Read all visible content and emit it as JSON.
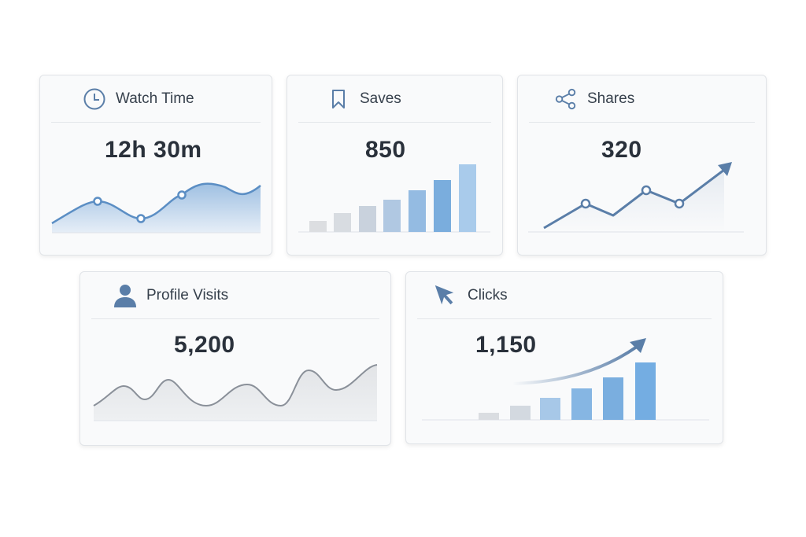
{
  "cards": [
    {
      "title": "Watch Time",
      "value": "12h 30m",
      "icon": "clock-icon",
      "chart_type": "area-line",
      "trend": [
        0.35,
        0.55,
        0.2,
        0.65,
        0.9,
        0.75,
        0.85
      ]
    },
    {
      "title": "Saves",
      "value": "850",
      "icon": "bookmark-icon",
      "chart_type": "bar",
      "bars": [
        14,
        24,
        33,
        41,
        53,
        66,
        86
      ]
    },
    {
      "title": "Shares",
      "value": "320",
      "icon": "share-icon",
      "chart_type": "line-arrow",
      "trend": [
        0.1,
        0.5,
        0.3,
        0.7,
        0.5,
        1.0
      ]
    },
    {
      "title": "Profile Visits",
      "value": "5,200",
      "icon": "user-icon",
      "chart_type": "wave-area"
    },
    {
      "title": "Clicks",
      "value": "1,150",
      "icon": "cursor-arrow-icon",
      "chart_type": "bar-arrow",
      "bars": [
        9,
        18,
        28,
        40,
        54,
        73
      ]
    }
  ],
  "colors": {
    "accent": "#5b8ec4",
    "bar_light": "#dadde1",
    "bar_blue": "#7eb0de",
    "icon": "#5a7ea8",
    "text": "#2c3440"
  }
}
